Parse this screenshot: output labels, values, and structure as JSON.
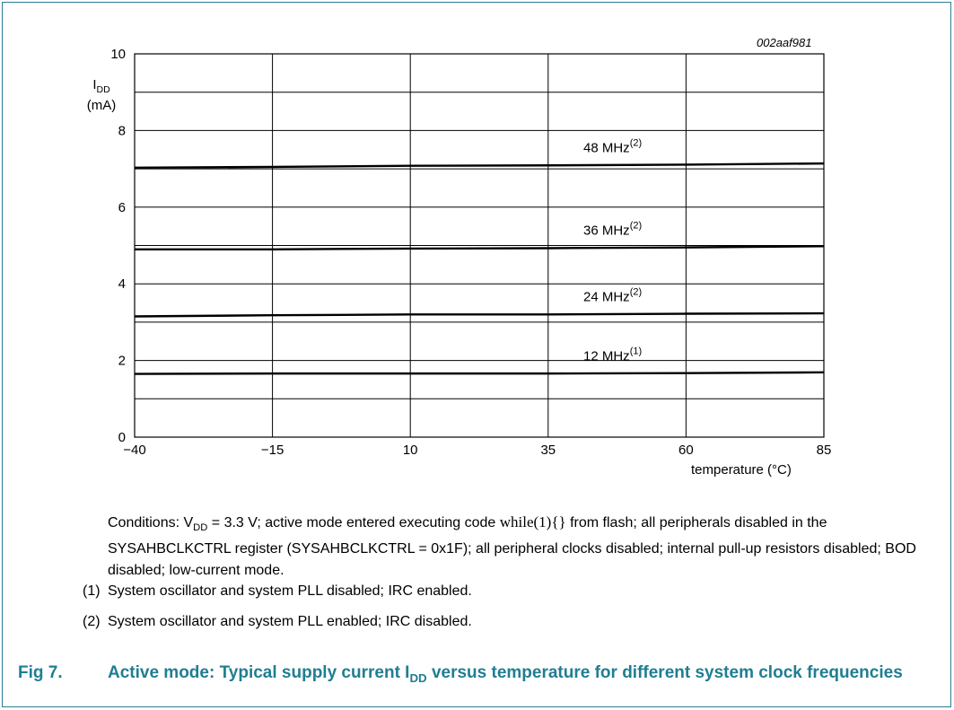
{
  "chart_data": {
    "type": "line",
    "chart_id": "002aaf981",
    "xlabel_text": "temperature (°C)",
    "ylabel_main": "I",
    "ylabel_sub": "DD",
    "ylabel_unit": "(mA)",
    "xlim": [
      -40,
      85
    ],
    "ylim": [
      0,
      10
    ],
    "x_ticks": [
      -40,
      -15,
      10,
      35,
      60,
      85
    ],
    "x_tick_labels": [
      "−40",
      "−15",
      "10",
      "35",
      "60",
      "85"
    ],
    "y_ticks": [
      0,
      2,
      4,
      6,
      8,
      10
    ],
    "y_tick_labels": [
      "0",
      "2",
      "4",
      "6",
      "8",
      "10"
    ],
    "grid": true,
    "series": [
      {
        "name": "48 MHz",
        "note": "(2)",
        "x": [
          -40,
          -15,
          10,
          35,
          60,
          85
        ],
        "values": [
          7.03,
          7.05,
          7.08,
          7.09,
          7.11,
          7.14
        ]
      },
      {
        "name": "36 MHz",
        "note": "(2)",
        "x": [
          -40,
          -15,
          10,
          35,
          60,
          85
        ],
        "values": [
          4.9,
          4.9,
          4.92,
          4.93,
          4.95,
          4.98
        ]
      },
      {
        "name": "24 MHz",
        "note": "(2)",
        "x": [
          -40,
          -15,
          10,
          35,
          60,
          85
        ],
        "values": [
          3.15,
          3.18,
          3.2,
          3.2,
          3.22,
          3.23
        ]
      },
      {
        "name": "12 MHz",
        "note": "(1)",
        "x": [
          -40,
          -15,
          10,
          35,
          60,
          85
        ],
        "values": [
          1.65,
          1.66,
          1.66,
          1.66,
          1.67,
          1.69
        ]
      }
    ]
  },
  "conditions": {
    "prefix": "Conditions: V",
    "sub": "DD",
    "mid": " = 3.3 V; active mode entered executing code ",
    "code": "while(1){}",
    "rest": " from flash; all peripherals disabled in the SYSAHBCLKCTRL register (SYSAHBCLKCTRL = 0x1F); all peripheral clocks disabled; internal pull-up resistors disabled; BOD disabled; low-current mode."
  },
  "footnotes": [
    {
      "num": "(1)",
      "text": "System oscillator and system PLL disabled; IRC enabled."
    },
    {
      "num": "(2)",
      "text": "System oscillator and system PLL enabled; IRC disabled."
    }
  ],
  "caption": {
    "figno": "Fig 7.",
    "text_before": "Active mode: Typical supply current I",
    "text_sub": "DD",
    "text_after": " versus temperature for different system clock frequencies"
  },
  "colors": {
    "accent": "#1f7e92",
    "curve": "#000000",
    "grid": "#000000"
  }
}
